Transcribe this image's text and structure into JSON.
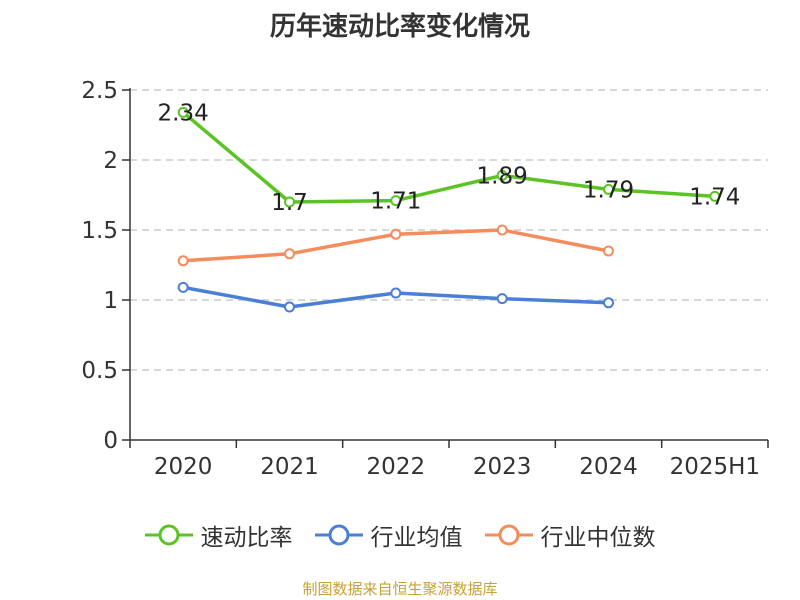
{
  "title": "历年速动比率变化情况",
  "source": "制图数据来自恒生聚源数据库",
  "chart_data": {
    "type": "line",
    "categories": [
      "2020",
      "2021",
      "2022",
      "2023",
      "2024",
      "2025H1"
    ],
    "ylim": [
      0,
      2.5
    ],
    "yticks": [
      "0",
      "0.5",
      "1",
      "1.5",
      "2",
      "2.5"
    ],
    "grid": true,
    "legend_position": "bottom",
    "series": [
      {
        "name": "速动比率",
        "color": "#5bc424",
        "values": [
          2.34,
          1.7,
          1.71,
          1.89,
          1.79,
          1.74
        ],
        "labels": [
          "2.34",
          "1.7",
          "1.71",
          "1.89",
          "1.79",
          "1.74"
        ]
      },
      {
        "name": "行业均值",
        "color": "#4a7fd6",
        "values": [
          1.09,
          0.95,
          1.05,
          1.01,
          0.98,
          null
        ],
        "labels": []
      },
      {
        "name": "行业中位数",
        "color": "#f48c5c",
        "values": [
          1.28,
          1.33,
          1.47,
          1.5,
          1.35,
          null
        ],
        "labels": []
      }
    ]
  }
}
